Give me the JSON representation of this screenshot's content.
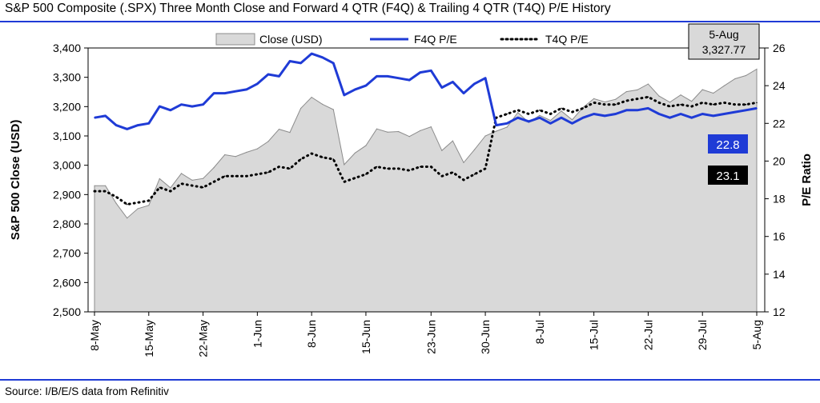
{
  "title": "S&P 500 Composite (.SPX) Three Month Close and Forward 4 QTR (F4Q) & Trailing 4 QTR (T4Q) P/E History",
  "source": "Source: I/B/E/S data from Refinitiv",
  "colors": {
    "close_fill": "#d9d9d9",
    "close_stroke": "#8c8c8c",
    "f4q": "#1f3bd6",
    "t4q": "#000000",
    "rule": "#1f3bd6"
  },
  "chart_data": {
    "type": "line",
    "title": "S&P 500 Composite (.SPX) Three Month Close and Forward 4 QTR (F4Q) & Trailing 4 QTR (T4Q) P/E History",
    "ylabel": "S&P 500 Close (USD)",
    "y2label": "P/E Ratio",
    "ylim": [
      2500,
      3400
    ],
    "y2lim": [
      12,
      26
    ],
    "yticks": [
      "2,500",
      "2,600",
      "2,700",
      "2,800",
      "2,900",
      "3,000",
      "3,100",
      "3,200",
      "3,300",
      "3,400"
    ],
    "y2ticks": [
      "12",
      "14",
      "16",
      "18",
      "20",
      "22",
      "24",
      "26"
    ],
    "xticks": [
      "8-May",
      "15-May",
      "22-May",
      "1-Jun",
      "8-Jun",
      "15-Jun",
      "23-Jun",
      "30-Jun",
      "8-Jul",
      "15-Jul",
      "22-Jul",
      "29-Jul",
      "5-Aug"
    ],
    "legend_position": "top",
    "x": [
      "8-May",
      "11-May",
      "12-May",
      "13-May",
      "14-May",
      "15-May",
      "18-May",
      "19-May",
      "20-May",
      "21-May",
      "22-May",
      "26-May",
      "27-May",
      "28-May",
      "29-May",
      "1-Jun",
      "2-Jun",
      "3-Jun",
      "4-Jun",
      "5-Jun",
      "8-Jun",
      "9-Jun",
      "10-Jun",
      "11-Jun",
      "12-Jun",
      "15-Jun",
      "16-Jun",
      "17-Jun",
      "18-Jun",
      "19-Jun",
      "22-Jun",
      "23-Jun",
      "24-Jun",
      "25-Jun",
      "26-Jun",
      "29-Jun",
      "30-Jun",
      "1-Jul",
      "2-Jul",
      "6-Jul",
      "7-Jul",
      "8-Jul",
      "9-Jul",
      "10-Jul",
      "13-Jul",
      "14-Jul",
      "15-Jul",
      "16-Jul",
      "17-Jul",
      "20-Jul",
      "21-Jul",
      "22-Jul",
      "23-Jul",
      "24-Jul",
      "27-Jul",
      "28-Jul",
      "29-Jul",
      "30-Jul",
      "31-Jul",
      "3-Aug",
      "4-Aug",
      "5-Aug"
    ],
    "series": [
      {
        "name": "Close (USD)",
        "axis": "left",
        "type": "area",
        "values": [
          2930,
          2930,
          2870,
          2820,
          2852,
          2863,
          2954,
          2923,
          2972,
          2949,
          2955,
          2992,
          3036,
          3030,
          3044,
          3056,
          3081,
          3123,
          3112,
          3194,
          3232,
          3208,
          3190,
          3002,
          3042,
          3067,
          3124,
          3113,
          3115,
          3098,
          3118,
          3131,
          3050,
          3083,
          3009,
          3053,
          3100,
          3116,
          3130,
          3180,
          3146,
          3170,
          3153,
          3185,
          3155,
          3197,
          3227,
          3216,
          3225,
          3251,
          3257,
          3277,
          3236,
          3215,
          3240,
          3218,
          3258,
          3246,
          3271,
          3295,
          3306,
          3327.77
        ]
      },
      {
        "name": "F4Q P/E",
        "axis": "right",
        "type": "line",
        "values": [
          22.3,
          22.4,
          21.9,
          21.7,
          21.9,
          22.0,
          22.9,
          22.7,
          23.0,
          22.9,
          23.0,
          23.6,
          23.6,
          23.7,
          23.8,
          24.1,
          24.6,
          24.5,
          25.3,
          25.2,
          25.7,
          25.5,
          25.2,
          23.5,
          23.8,
          24.0,
          24.5,
          24.5,
          24.4,
          24.3,
          24.7,
          24.8,
          23.9,
          24.2,
          23.6,
          24.1,
          24.4,
          21.9,
          22.0,
          22.3,
          22.1,
          22.3,
          22.0,
          22.3,
          22.0,
          22.3,
          22.5,
          22.4,
          22.5,
          22.7,
          22.7,
          22.8,
          22.5,
          22.3,
          22.5,
          22.3,
          22.5,
          22.4,
          22.5,
          22.6,
          22.7,
          22.8
        ]
      },
      {
        "name": "T4Q P/E",
        "axis": "right",
        "type": "line",
        "style": "dotted",
        "values": [
          18.4,
          18.4,
          18.1,
          17.7,
          17.8,
          17.9,
          18.6,
          18.4,
          18.8,
          18.7,
          18.6,
          18.9,
          19.2,
          19.2,
          19.2,
          19.3,
          19.4,
          19.7,
          19.6,
          20.1,
          20.4,
          20.2,
          20.1,
          18.9,
          19.1,
          19.3,
          19.7,
          19.6,
          19.6,
          19.5,
          19.7,
          19.7,
          19.2,
          19.4,
          19.0,
          19.3,
          19.6,
          22.3,
          22.5,
          22.7,
          22.5,
          22.7,
          22.5,
          22.8,
          22.6,
          22.8,
          23.1,
          23.0,
          23.0,
          23.2,
          23.3,
          23.4,
          23.1,
          22.9,
          23.0,
          22.9,
          23.1,
          23.0,
          23.1,
          23.0,
          23.0,
          23.1
        ]
      }
    ],
    "callouts": {
      "close_date": "5-Aug",
      "close_value": "3,327.77",
      "f4q_label": "22.8",
      "t4q_label": "23.1"
    }
  }
}
